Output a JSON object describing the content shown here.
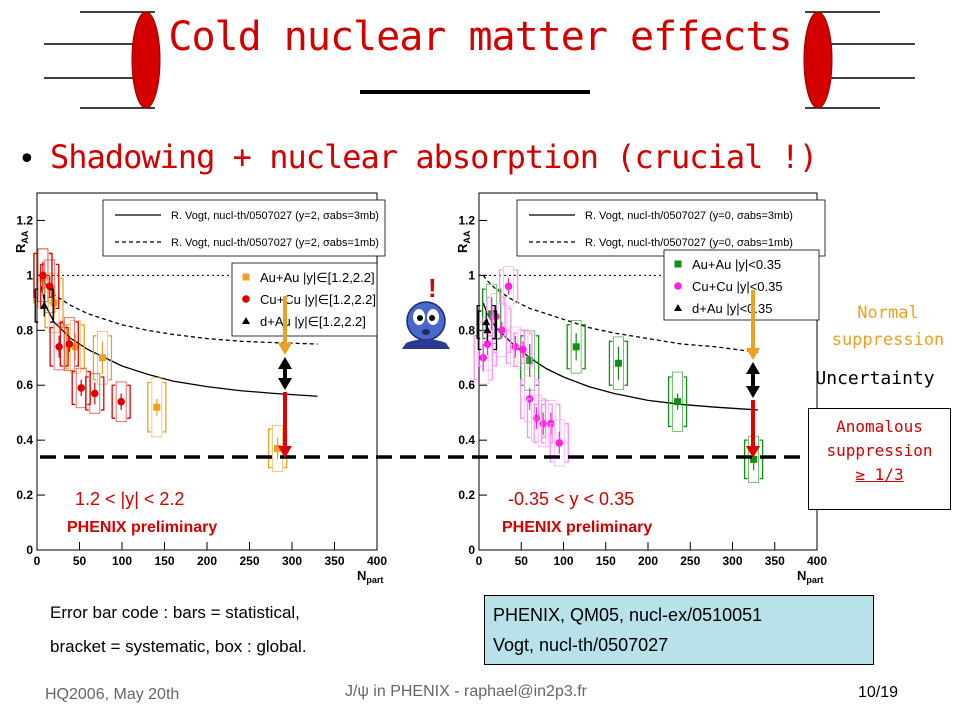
{
  "slide": {
    "title": "Cold nuclear matter effects",
    "bullet": "Shadowing + nuclear absorption (crucial !)",
    "bullet_marker": "•",
    "excl": "!",
    "normal_suppression": "Normal suppression",
    "uncertainty": "Uncertainty",
    "anomalous": [
      "Anomalous",
      "suppression",
      "≥ 1/3"
    ],
    "note_line1": "Error bar code : bars = statistical,",
    "note_line2": "bracket = systematic, box : global.",
    "ref_line1": "PHENIX, QM05, nucl-ex/0510051",
    "ref_line2": "Vogt, nucl-th/0507027",
    "footer_left": "HQ2006, May 20th",
    "footer_center": "J/ψ in PHENIX - raphael@in2p3.fr",
    "footer_right": "10/19",
    "colors": {
      "title": "#d40000",
      "arrow_orange": "#f0a020",
      "arrow_red": "#e00000",
      "refbox": "#b9e1e9"
    },
    "icon": "surprised-face-icon"
  },
  "chart_data": [
    {
      "type": "scatter",
      "rapidity_label": "1.2 < |y| < 2.2",
      "preliminary": "PHENIX preliminary",
      "xlabel": "N_part",
      "ylabel": "R_AA",
      "xlim": [
        0,
        400
      ],
      "ylim": [
        0,
        1.3
      ],
      "xticks": [
        0,
        50,
        100,
        150,
        200,
        250,
        300,
        350,
        400
      ],
      "yticks": [
        0,
        0.2,
        0.4,
        0.6,
        0.8,
        1,
        1.2
      ],
      "legend_model": [
        "R. Vogt, nucl-th/0507027 (y=2, σabs=3mb)",
        "R. Vogt, nucl-th/0507027 (y=2, σabs=1mb)"
      ],
      "legend_data": [
        "Au+Au |y|∈[1.2,2.2]",
        "Cu+Cu |y|∈[1.2,2.2]",
        "d+Au |y|∈[1.2,2.2]"
      ],
      "model_curves": [
        {
          "style": "solid",
          "x": [
            5,
            10,
            20,
            40,
            60,
            80,
            100,
            130,
            160,
            200,
            240,
            280,
            330
          ],
          "y": [
            0.96,
            0.89,
            0.83,
            0.77,
            0.73,
            0.7,
            0.67,
            0.64,
            0.615,
            0.595,
            0.58,
            0.57,
            0.56
          ]
        },
        {
          "style": "dashed",
          "x": [
            5,
            10,
            20,
            40,
            60,
            80,
            100,
            130,
            160,
            200,
            240,
            280,
            330
          ],
          "y": [
            1.0,
            0.97,
            0.93,
            0.89,
            0.86,
            0.84,
            0.82,
            0.8,
            0.785,
            0.77,
            0.76,
            0.755,
            0.75
          ]
        }
      ],
      "series": [
        {
          "name": "Au+Au |y|∈[1.2,2.2]",
          "color": "#f0a020",
          "marker": "square",
          "x": [
            7,
            20,
            45,
            77,
            141,
            283
          ],
          "y": [
            0.99,
            0.9,
            0.74,
            0.7,
            0.52,
            0.37
          ]
        },
        {
          "name": "Cu+Cu |y|∈[1.2,2.2]",
          "color": "#e00000",
          "marker": "circle",
          "x": [
            7,
            15,
            26,
            38,
            52,
            68,
            99
          ],
          "y": [
            1.0,
            0.96,
            0.74,
            0.75,
            0.59,
            0.57,
            0.54
          ]
        },
        {
          "name": "d+Au |y|∈[1.2,2.2]",
          "color": "#000000",
          "marker": "triangle",
          "x": [
            8.5
          ],
          "y": [
            0.89
          ]
        }
      ]
    },
    {
      "type": "scatter",
      "rapidity_label": "-0.35 < y < 0.35",
      "preliminary": "PHENIX preliminary",
      "xlabel": "N_part",
      "ylabel": "R_AA",
      "xlim": [
        0,
        400
      ],
      "ylim": [
        0,
        1.3
      ],
      "xticks": [
        0,
        50,
        100,
        150,
        200,
        250,
        300,
        350,
        400
      ],
      "yticks": [
        0,
        0.2,
        0.4,
        0.6,
        0.8,
        1,
        1.2
      ],
      "legend_model": [
        "R. Vogt, nucl-th/0507027 (y=0, σabs=3mb)",
        "R. Vogt, nucl-th/0507027 (y=0, σabs=1mb)"
      ],
      "legend_data": [
        "Au+Au |y|<0.35",
        "Cu+Cu |y|<0.35",
        "d+Au |y|<0.35"
      ],
      "model_curves": [
        {
          "style": "solid",
          "x": [
            5,
            10,
            20,
            40,
            60,
            80,
            100,
            130,
            160,
            200,
            240,
            280,
            330
          ],
          "y": [
            0.9,
            0.86,
            0.81,
            0.75,
            0.7,
            0.66,
            0.63,
            0.595,
            0.57,
            0.545,
            0.53,
            0.52,
            0.51
          ]
        },
        {
          "style": "dashed",
          "x": [
            5,
            10,
            20,
            40,
            60,
            80,
            100,
            130,
            160,
            200,
            240,
            280,
            330
          ],
          "y": [
            1.0,
            0.98,
            0.95,
            0.91,
            0.88,
            0.86,
            0.84,
            0.81,
            0.79,
            0.77,
            0.75,
            0.74,
            0.72
          ]
        }
      ],
      "series": [
        {
          "name": "Au+Au |y|<0.35",
          "color": "#109010",
          "marker": "square",
          "x": [
            15,
            60,
            115,
            165,
            235,
            325
          ],
          "y": [
            0.86,
            0.69,
            0.74,
            0.68,
            0.54,
            0.33
          ]
        },
        {
          "name": "Cu+Cu |y|<0.35",
          "color": "#ff20e0",
          "marker": "circle",
          "x": [
            5,
            10,
            20,
            27,
            35,
            43,
            52,
            60,
            68,
            76,
            85,
            95
          ],
          "y": [
            0.7,
            0.75,
            0.85,
            0.8,
            0.96,
            0.74,
            0.73,
            0.55,
            0.48,
            0.46,
            0.46,
            0.39
          ]
        },
        {
          "name": "d+Au |y|<0.35",
          "color": "#000000",
          "marker": "triangle",
          "x": [
            8.5,
            10
          ],
          "y": [
            0.83,
            0.8
          ]
        }
      ]
    }
  ]
}
